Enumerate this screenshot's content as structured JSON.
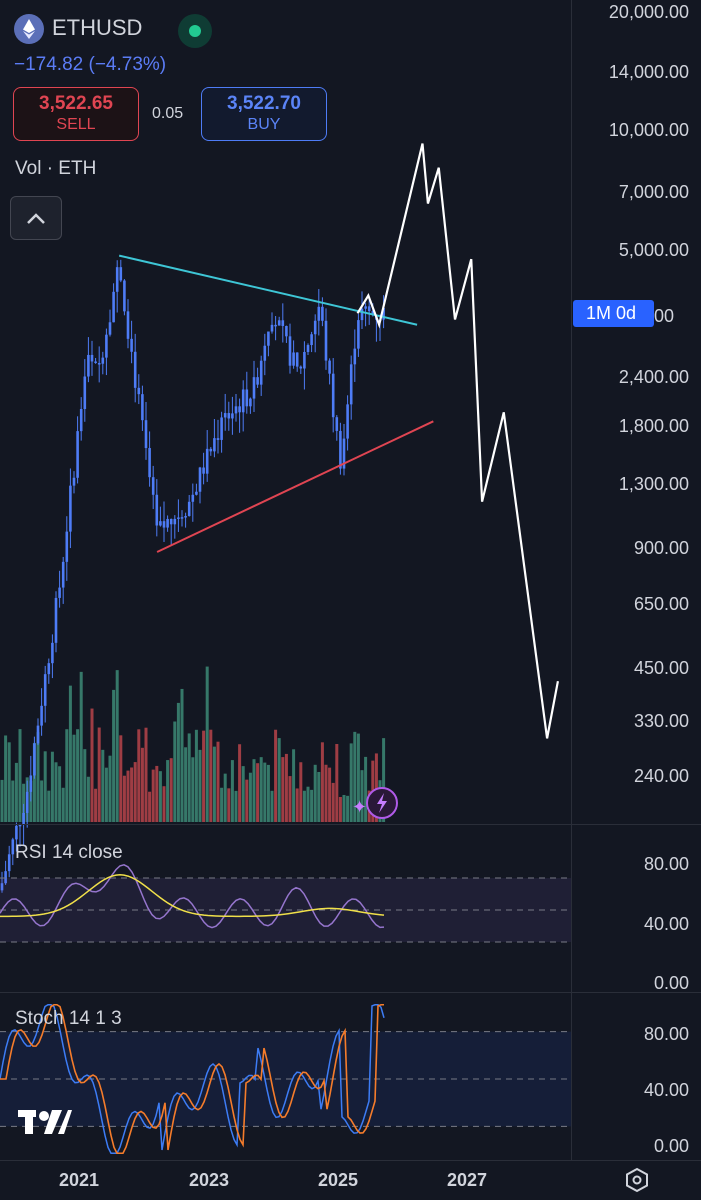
{
  "header": {
    "symbol": "ETHUSD",
    "change": "−174.82 (−4.73%)",
    "sell_price": "3,522.65",
    "sell_label": "SELL",
    "spread": "0.05",
    "buy_price": "3,522.70",
    "buy_label": "BUY",
    "volume_label": "Vol · ETH"
  },
  "price_axis": [
    "20,000.00",
    "14,000.00",
    "10,000.00",
    "7,000.00",
    "5,000.00",
    "2,400.00",
    "1,800.00",
    "1,300.00",
    "900.00",
    "650.00",
    "450.00",
    "330.00",
    "240.00"
  ],
  "interval_badge": "1M 0d",
  "interval_badge_suffix": "00",
  "rsi": {
    "title": "RSI 14 close",
    "axis": [
      "80.00",
      "40.00",
      "0.00"
    ]
  },
  "stoch": {
    "title": "Stoch 14 1 3",
    "axis": [
      "80.00",
      "40.00",
      "0.00"
    ]
  },
  "time_axis": [
    "2021",
    "2023",
    "2025",
    "2027"
  ],
  "colors": {
    "background": "#131722",
    "candle": "#4e7cf6",
    "volume_up": "#3d8a76",
    "volume_down": "#b8444a",
    "upper_trendline": "#3ec6d6",
    "lower_trendline": "#e04552",
    "projection": "#ffffff",
    "rsi_line": "#9575cd",
    "rsi_ma": "#f0e04a",
    "stoch_k": "#3d7cf5",
    "stoch_d": "#f57c2b",
    "buy": "#4e7cf6",
    "sell": "#e04552"
  },
  "chart_data": {
    "type": "line",
    "symbol": "ETHUSD",
    "y_scale": "log",
    "ylim": [
      200,
      20000
    ],
    "x_ticks": [
      "2021",
      "2023",
      "2025",
      "2027"
    ],
    "price_path": [
      {
        "x": "2020-01",
        "y": 130
      },
      {
        "x": "2020-06",
        "y": 230
      },
      {
        "x": "2020-12",
        "y": 740
      },
      {
        "x": "2021-05",
        "y": 2700
      },
      {
        "x": "2021-07",
        "y": 2500
      },
      {
        "x": "2021-11",
        "y": 4700
      },
      {
        "x": "2022-01",
        "y": 3000
      },
      {
        "x": "2022-06",
        "y": 1000
      },
      {
        "x": "2022-12",
        "y": 1200
      },
      {
        "x": "2023-06",
        "y": 1900
      },
      {
        "x": "2023-12",
        "y": 2300
      },
      {
        "x": "2024-03",
        "y": 3600
      },
      {
        "x": "2024-08",
        "y": 2500
      },
      {
        "x": "2024-12",
        "y": 3700
      },
      {
        "x": "2025-03",
        "y": 1800
      },
      {
        "x": "2025-04",
        "y": 1500
      },
      {
        "x": "2025-07",
        "y": 3522.7
      }
    ],
    "projection_path": [
      {
        "x": "2025-07",
        "y": 3522.7
      },
      {
        "x": "2025-09",
        "y": 3900
      },
      {
        "x": "2025-11",
        "y": 3300
      },
      {
        "x": "2026-07",
        "y": 9300
      },
      {
        "x": "2026-08",
        "y": 6600
      },
      {
        "x": "2026-10",
        "y": 8100
      },
      {
        "x": "2027-01",
        "y": 3400
      },
      {
        "x": "2027-04",
        "y": 4800
      },
      {
        "x": "2027-06",
        "y": 1200
      },
      {
        "x": "2027-10",
        "y": 2000
      },
      {
        "x": "2028-06",
        "y": 310
      },
      {
        "x": "2028-08",
        "y": 430
      }
    ],
    "upper_trendline": [
      {
        "x": "2021-11",
        "y": 4900
      },
      {
        "x": "2026-06",
        "y": 3300
      }
    ],
    "lower_trendline": [
      {
        "x": "2022-06",
        "y": 900
      },
      {
        "x": "2026-09",
        "y": 1900
      }
    ],
    "rsi": {
      "title": "RSI 14 close",
      "ylim": [
        0,
        100
      ],
      "bands": [
        70,
        50,
        30
      ]
    },
    "stochastic": {
      "title": "Stoch 14 1 3",
      "ylim": [
        0,
        100
      ],
      "bands": [
        80,
        50,
        20
      ]
    }
  }
}
